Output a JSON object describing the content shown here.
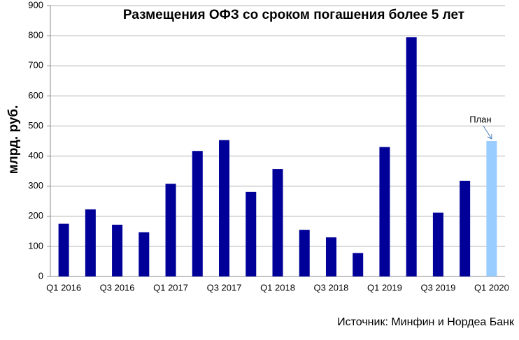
{
  "chart_data": {
    "type": "bar",
    "title": "Размещения ОФЗ со сроком погашения более 5 лет",
    "y_label": "млрд. руб.",
    "source": "Источник: Минфин и Нордеа Банк",
    "annotation": "План",
    "categories": [
      "Q1 2016",
      null,
      "Q3 2016",
      null,
      "Q1 2017",
      null,
      "Q3 2017",
      null,
      "Q1 2018",
      null,
      "Q3 2018",
      null,
      "Q1 2019",
      null,
      "Q3 2019",
      null,
      "Q1 2020"
    ],
    "values": [
      175,
      223,
      172,
      147,
      308,
      417,
      453,
      281,
      357,
      155,
      130,
      78,
      430,
      795,
      212,
      318,
      450
    ],
    "colors": [
      "#000099",
      "#000099",
      "#000099",
      "#000099",
      "#000099",
      "#000099",
      "#000099",
      "#000099",
      "#000099",
      "#000099",
      "#000099",
      "#000099",
      "#000099",
      "#000099",
      "#000099",
      "#000099",
      "#99ccff"
    ],
    "ylim": [
      0,
      900
    ],
    "yticks": [
      0,
      100,
      200,
      300,
      400,
      500,
      600,
      700,
      800,
      900
    ],
    "grid": true
  }
}
